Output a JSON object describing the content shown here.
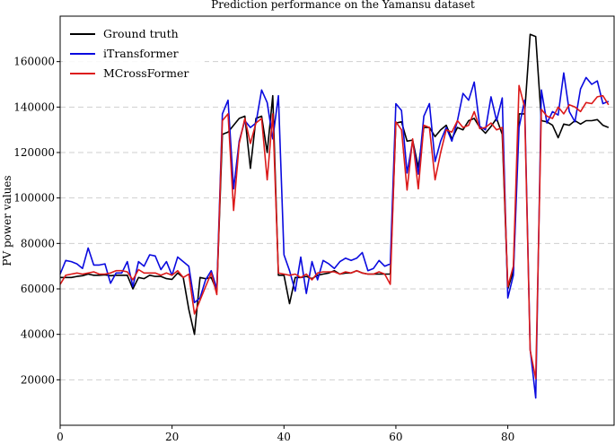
{
  "chart_data": {
    "type": "line",
    "title": "Prediction performance on the Yamansu dataset",
    "xlabel": "",
    "ylabel": "PV power values",
    "xlim": [
      0,
      99
    ],
    "ylim": [
      0,
      180000
    ],
    "xticks": [
      0,
      20,
      40,
      60,
      80
    ],
    "yticks": [
      20000,
      40000,
      60000,
      80000,
      100000,
      120000,
      140000,
      160000
    ],
    "grid": "horizontal-dashed",
    "legend": "top-left",
    "series": [
      {
        "name": "Ground truth",
        "color": "#000000",
        "values": [
          65000,
          65000,
          65000,
          65500,
          65800,
          66500,
          66000,
          66000,
          66200,
          65800,
          66000,
          66000,
          66000,
          60000,
          65000,
          64500,
          66000,
          65500,
          65500,
          64500,
          64200,
          67000,
          65000,
          51000,
          40000,
          65000,
          64500,
          65000,
          59000,
          128000,
          129000,
          132000,
          135000,
          136000,
          113000,
          135000,
          136000,
          120000,
          145000,
          66000,
          66000,
          53500,
          65000,
          65000,
          65500,
          64500,
          66000,
          66500,
          67000,
          68000,
          66500,
          67000,
          67000,
          68000,
          67000,
          66500,
          66500,
          66500,
          66500,
          66500,
          133000,
          133500,
          125000,
          125500,
          113500,
          131000,
          131000,
          127000,
          130000,
          132000,
          126000,
          131000,
          130000,
          134000,
          135000,
          131000,
          128500,
          131500,
          135000,
          128000,
          60000,
          68000,
          137000,
          137000,
          172000,
          171000,
          134000,
          133500,
          132000,
          126500,
          132500,
          132000,
          134000,
          132500,
          134000,
          134000,
          134500,
          132000,
          131000
        ]
      },
      {
        "name": "iTransformer",
        "color": "#0a0adf",
        "values": [
          66500,
          72500,
          72000,
          71000,
          69000,
          78000,
          70500,
          70500,
          71000,
          62500,
          67000,
          67000,
          72000,
          61000,
          72000,
          70000,
          75000,
          74500,
          68500,
          72000,
          66000,
          74000,
          72000,
          70000,
          54000,
          56000,
          64000,
          68000,
          60000,
          137000,
          143000,
          104000,
          125000,
          134000,
          131000,
          133000,
          147500,
          142000,
          126000,
          145000,
          75000,
          68000,
          59000,
          74000,
          58000,
          72000,
          64000,
          72500,
          71000,
          69000,
          72000,
          73500,
          72500,
          73500,
          76000,
          68000,
          69000,
          72500,
          70000,
          71000,
          141500,
          138500,
          111000,
          125000,
          110500,
          136000,
          141500,
          116000,
          125000,
          131000,
          125000,
          134000,
          146000,
          143000,
          151000,
          131500,
          130000,
          144500,
          134000,
          144000,
          56000,
          66000,
          131000,
          143000,
          33500,
          12000,
          147500,
          133000,
          138000,
          136500,
          155000,
          138000,
          133500,
          148000,
          153000,
          150000,
          151500,
          141500,
          142500
        ]
      },
      {
        "name": "MCrossFormer",
        "color": "#dc1a1a",
        "values": [
          62000,
          66000,
          66500,
          67000,
          66500,
          67000,
          67500,
          66500,
          66500,
          67000,
          68000,
          68000,
          67500,
          64000,
          68500,
          67000,
          67000,
          67000,
          66000,
          67000,
          66000,
          68000,
          65000,
          66500,
          49000,
          55000,
          61000,
          67000,
          57500,
          134000,
          137000,
          94500,
          124000,
          135000,
          124000,
          133000,
          135000,
          108000,
          137000,
          67000,
          66500,
          66000,
          66500,
          65000,
          66500,
          64000,
          67000,
          67500,
          67500,
          67500,
          66500,
          67500,
          67000,
          68000,
          67000,
          66500,
          66500,
          67500,
          66500,
          62000,
          133500,
          130000,
          103500,
          126000,
          104000,
          132000,
          131000,
          108000,
          120000,
          130000,
          129000,
          134000,
          131000,
          132000,
          138000,
          130500,
          131000,
          133000,
          130000,
          131000,
          61000,
          70000,
          149500,
          140000,
          33000,
          20500,
          139000,
          136000,
          135000,
          140000,
          137000,
          141000,
          140000,
          138000,
          142000,
          141500,
          144500,
          145000,
          141000
        ]
      }
    ]
  }
}
